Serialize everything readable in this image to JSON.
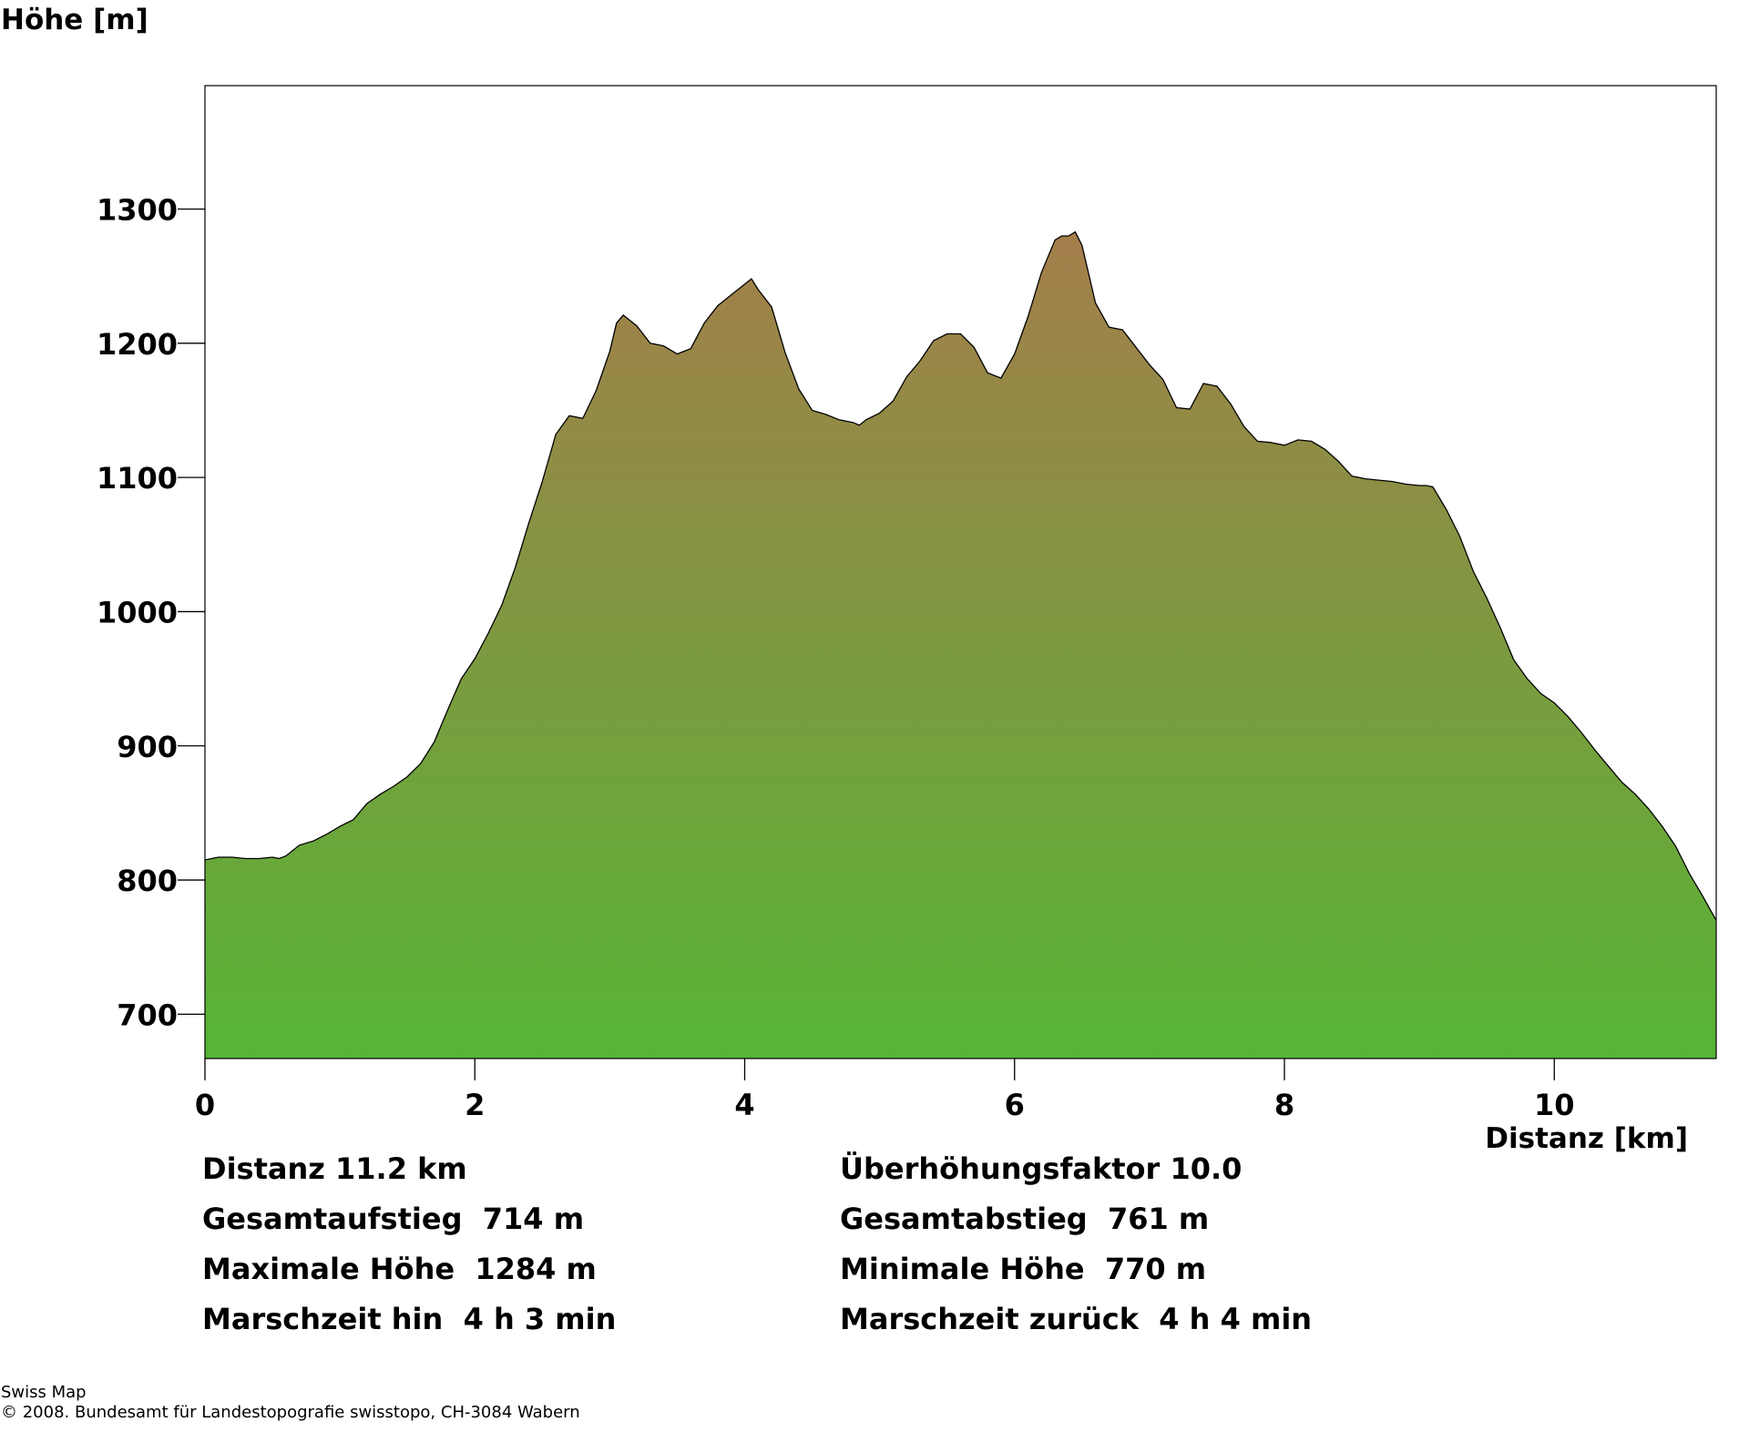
{
  "chart_data": {
    "type": "area",
    "ylabel": "Höhe [m]",
    "xlabel": "Distanz [km]",
    "xlim": [
      0,
      11.2
    ],
    "ylim": [
      667,
      1392
    ],
    "x_ticks": [
      0,
      2,
      4,
      6,
      8,
      10
    ],
    "x_tick_labels": [
      "0",
      "2",
      "4",
      "6",
      "8",
      "10"
    ],
    "y_ticks": [
      700,
      800,
      900,
      1000,
      1100,
      1200,
      1300
    ],
    "y_tick_labels": [
      "700",
      "800",
      "900",
      "1000",
      "1100",
      "1200",
      "1300"
    ],
    "grid": false,
    "colors": {
      "fill_top": "#a47e4b",
      "fill_bottom": "#56b535",
      "outline": "#000000"
    },
    "series": [
      {
        "x": [
          0,
          0.1,
          0.2,
          0.3,
          0.4,
          0.5,
          0.55,
          0.6,
          0.7,
          0.8,
          0.9,
          1.0,
          1.1,
          1.2,
          1.3,
          1.4,
          1.5,
          1.6,
          1.7,
          1.8,
          1.9,
          2.0,
          2.1,
          2.2,
          2.3,
          2.4,
          2.5,
          2.6,
          2.7,
          2.8,
          2.9,
          3.0,
          3.05,
          3.1,
          3.2,
          3.3,
          3.4,
          3.5,
          3.6,
          3.7,
          3.8,
          3.9,
          4.0,
          4.05,
          4.1,
          4.2,
          4.3,
          4.4,
          4.5,
          4.6,
          4.7,
          4.8,
          4.85,
          4.9,
          5.0,
          5.1,
          5.2,
          5.3,
          5.4,
          5.5,
          5.6,
          5.7,
          5.8,
          5.9,
          6.0,
          6.1,
          6.2,
          6.3,
          6.35,
          6.4,
          6.45,
          6.5,
          6.6,
          6.7,
          6.8,
          6.9,
          7.0,
          7.1,
          7.2,
          7.3,
          7.4,
          7.5,
          7.6,
          7.7,
          7.8,
          7.9,
          8.0,
          8.1,
          8.2,
          8.3,
          8.4,
          8.5,
          8.6,
          8.7,
          8.8,
          8.9,
          9.0,
          9.05,
          9.1,
          9.2,
          9.3,
          9.4,
          9.5,
          9.6,
          9.7,
          9.8,
          9.9,
          10.0,
          10.1,
          10.2,
          10.3,
          10.4,
          10.5,
          10.6,
          10.7,
          10.8,
          10.9,
          11.0,
          11.1,
          11.2
        ],
        "y": [
          815,
          817,
          817,
          816,
          816,
          817,
          816,
          818,
          826,
          829,
          834,
          840,
          845,
          857,
          864,
          870,
          877,
          887,
          903,
          927,
          950,
          965,
          984,
          1005,
          1033,
          1066,
          1097,
          1132,
          1146,
          1144,
          1165,
          1194,
          1215,
          1221,
          1213,
          1200,
          1198,
          1192,
          1196,
          1215,
          1228,
          1236,
          1244,
          1248,
          1240,
          1227,
          1193,
          1166,
          1150,
          1147,
          1143,
          1141,
          1139,
          1143,
          1148,
          1157,
          1175,
          1187,
          1202,
          1207,
          1207,
          1197,
          1178,
          1174,
          1192,
          1220,
          1253,
          1277,
          1280,
          1280,
          1283,
          1273,
          1230,
          1212,
          1210,
          1197,
          1184,
          1173,
          1152,
          1151,
          1170,
          1168,
          1155,
          1138,
          1127,
          1126,
          1124,
          1128,
          1127,
          1121,
          1112,
          1101,
          1099,
          1098,
          1097,
          1095,
          1094,
          1094,
          1093,
          1076,
          1056,
          1030,
          1010,
          988,
          964,
          950,
          939,
          932,
          922,
          910,
          897,
          885,
          873,
          864,
          853,
          840,
          825,
          805,
          788,
          770
        ]
      }
    ]
  },
  "stats": {
    "left": [
      "Distanz 11.2 km",
      "Gesamtaufstieg  714 m",
      "Maximale Höhe  1284 m",
      "Marschzeit hin  4 h 3 min"
    ],
    "right": [
      "Überhöhungsfaktor 10.0",
      "Gesamtabstieg  761 m",
      "Minimale Höhe  770 m",
      "Marschzeit zurück  4 h 4 min"
    ]
  },
  "footer": {
    "line1": "Swiss Map",
    "line2": "© 2008. Bundesamt für Landestopografie swisstopo, CH-3084 Wabern"
  }
}
